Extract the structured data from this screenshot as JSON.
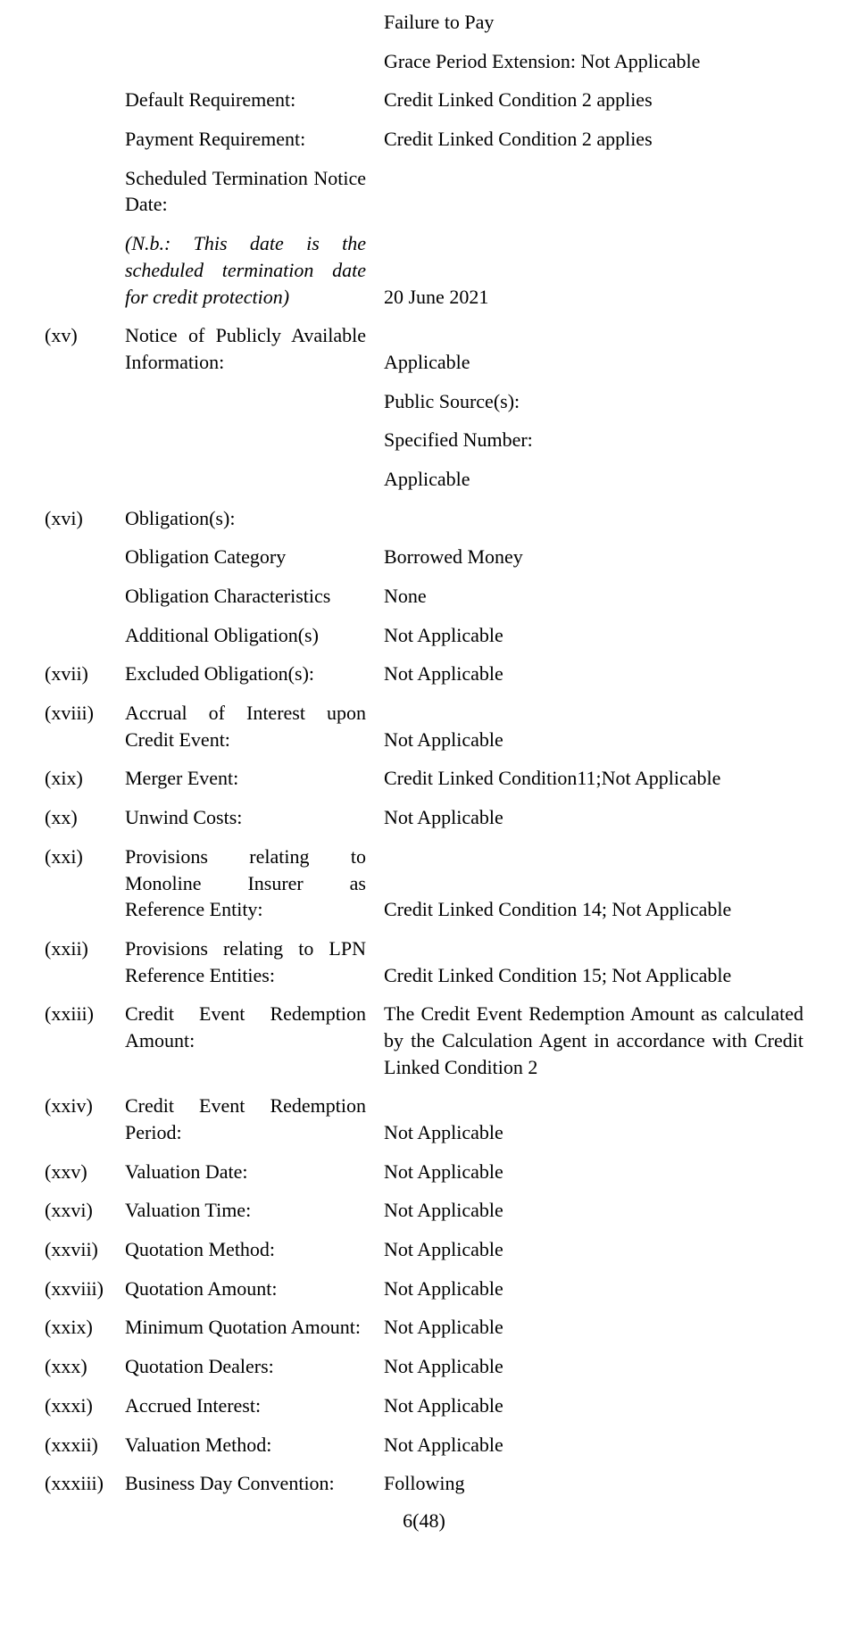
{
  "top": {
    "failureToPay": "Failure to Pay",
    "gracePeriod": "Grace Period Extension: Not Applicable"
  },
  "nonum": {
    "defaultReq": {
      "label": "Default Requirement:",
      "value": "Credit Linked Condition 2 applies"
    },
    "paymentReq": {
      "label": "Payment Requirement:",
      "value": "Credit Linked Condition 2 applies"
    },
    "schedTerm": {
      "label": "Scheduled Termination Notice Date:"
    },
    "nb": {
      "label": "(N.b.: This date is the scheduled termination date for credit protection)",
      "value": "20 June 2021"
    }
  },
  "items": {
    "xv": {
      "num": "(xv)",
      "label": "Notice of Publicly Available Information:",
      "value": "Applicable"
    },
    "xv_b": {
      "value": "Public Source(s):"
    },
    "xv_c": {
      "value": "Specified Number:"
    },
    "xv_d": {
      "value": "Applicable"
    },
    "xvi": {
      "num": "(xvi)",
      "label": "Obligation(s):"
    },
    "xvi_a": {
      "label": "Obligation Category",
      "value": "Borrowed Money"
    },
    "xvi_b": {
      "label": "Obligation Characteristics",
      "value": "None"
    },
    "xvi_c": {
      "label": "Additional Obligation(s)",
      "value": "Not Applicable"
    },
    "xvii": {
      "num": "(xvii)",
      "label": "Excluded Obligation(s):",
      "value": "Not Applicable"
    },
    "xviii": {
      "num": "(xviii)",
      "label": "Accrual of Interest upon Credit Event:",
      "value": "Not Applicable"
    },
    "xix": {
      "num": "(xix)",
      "label": "Merger Event:",
      "value": "Credit Linked Condition11;Not Applicable"
    },
    "xx": {
      "num": "(xx)",
      "label": "Unwind Costs:",
      "value": "Not Applicable"
    },
    "xxi": {
      "num": "(xxi)",
      "label": "Provisions relating to Monoline Insurer as Reference Entity:",
      "value": "Credit Linked Condition 14; Not Applicable"
    },
    "xxii": {
      "num": "(xxii)",
      "label": "Provisions relating to LPN Reference Entities:",
      "value": "Credit Linked Condition 15; Not Applicable"
    },
    "xxiii": {
      "num": "(xxiii)",
      "label": "Credit Event Redemption Amount:",
      "value": "The Credit Event Redemption Amount as calculated by the Calculation Agent in accordance with Credit Linked Condition 2"
    },
    "xxiv": {
      "num": "(xxiv)",
      "label": "Credit Event Redemption Period:",
      "value": "Not Applicable"
    },
    "xxv": {
      "num": "(xxv)",
      "label": "Valuation Date:",
      "value": "Not Applicable"
    },
    "xxvi": {
      "num": "(xxvi)",
      "label": "Valuation Time:",
      "value": "Not Applicable"
    },
    "xxvii": {
      "num": "(xxvii)",
      "label": "Quotation Method:",
      "value": "Not Applicable"
    },
    "xxviii": {
      "num": "(xxviii)",
      "label": "Quotation Amount:",
      "value": "Not Applicable"
    },
    "xxix": {
      "num": "(xxix)",
      "label": "Minimum Quotation Amount:",
      "value": "Not Applicable"
    },
    "xxx": {
      "num": "(xxx)",
      "label": "Quotation Dealers:",
      "value": "Not Applicable"
    },
    "xxxi": {
      "num": "(xxxi)",
      "label": "Accrued Interest:",
      "value": "Not Applicable"
    },
    "xxxii": {
      "num": "(xxxii)",
      "label": "Valuation Method:",
      "value": "Not Applicable"
    },
    "xxxiii": {
      "num": "(xxxiii)",
      "label": "Business Day Convention:",
      "value": "Following"
    }
  },
  "footer": "6(48)"
}
